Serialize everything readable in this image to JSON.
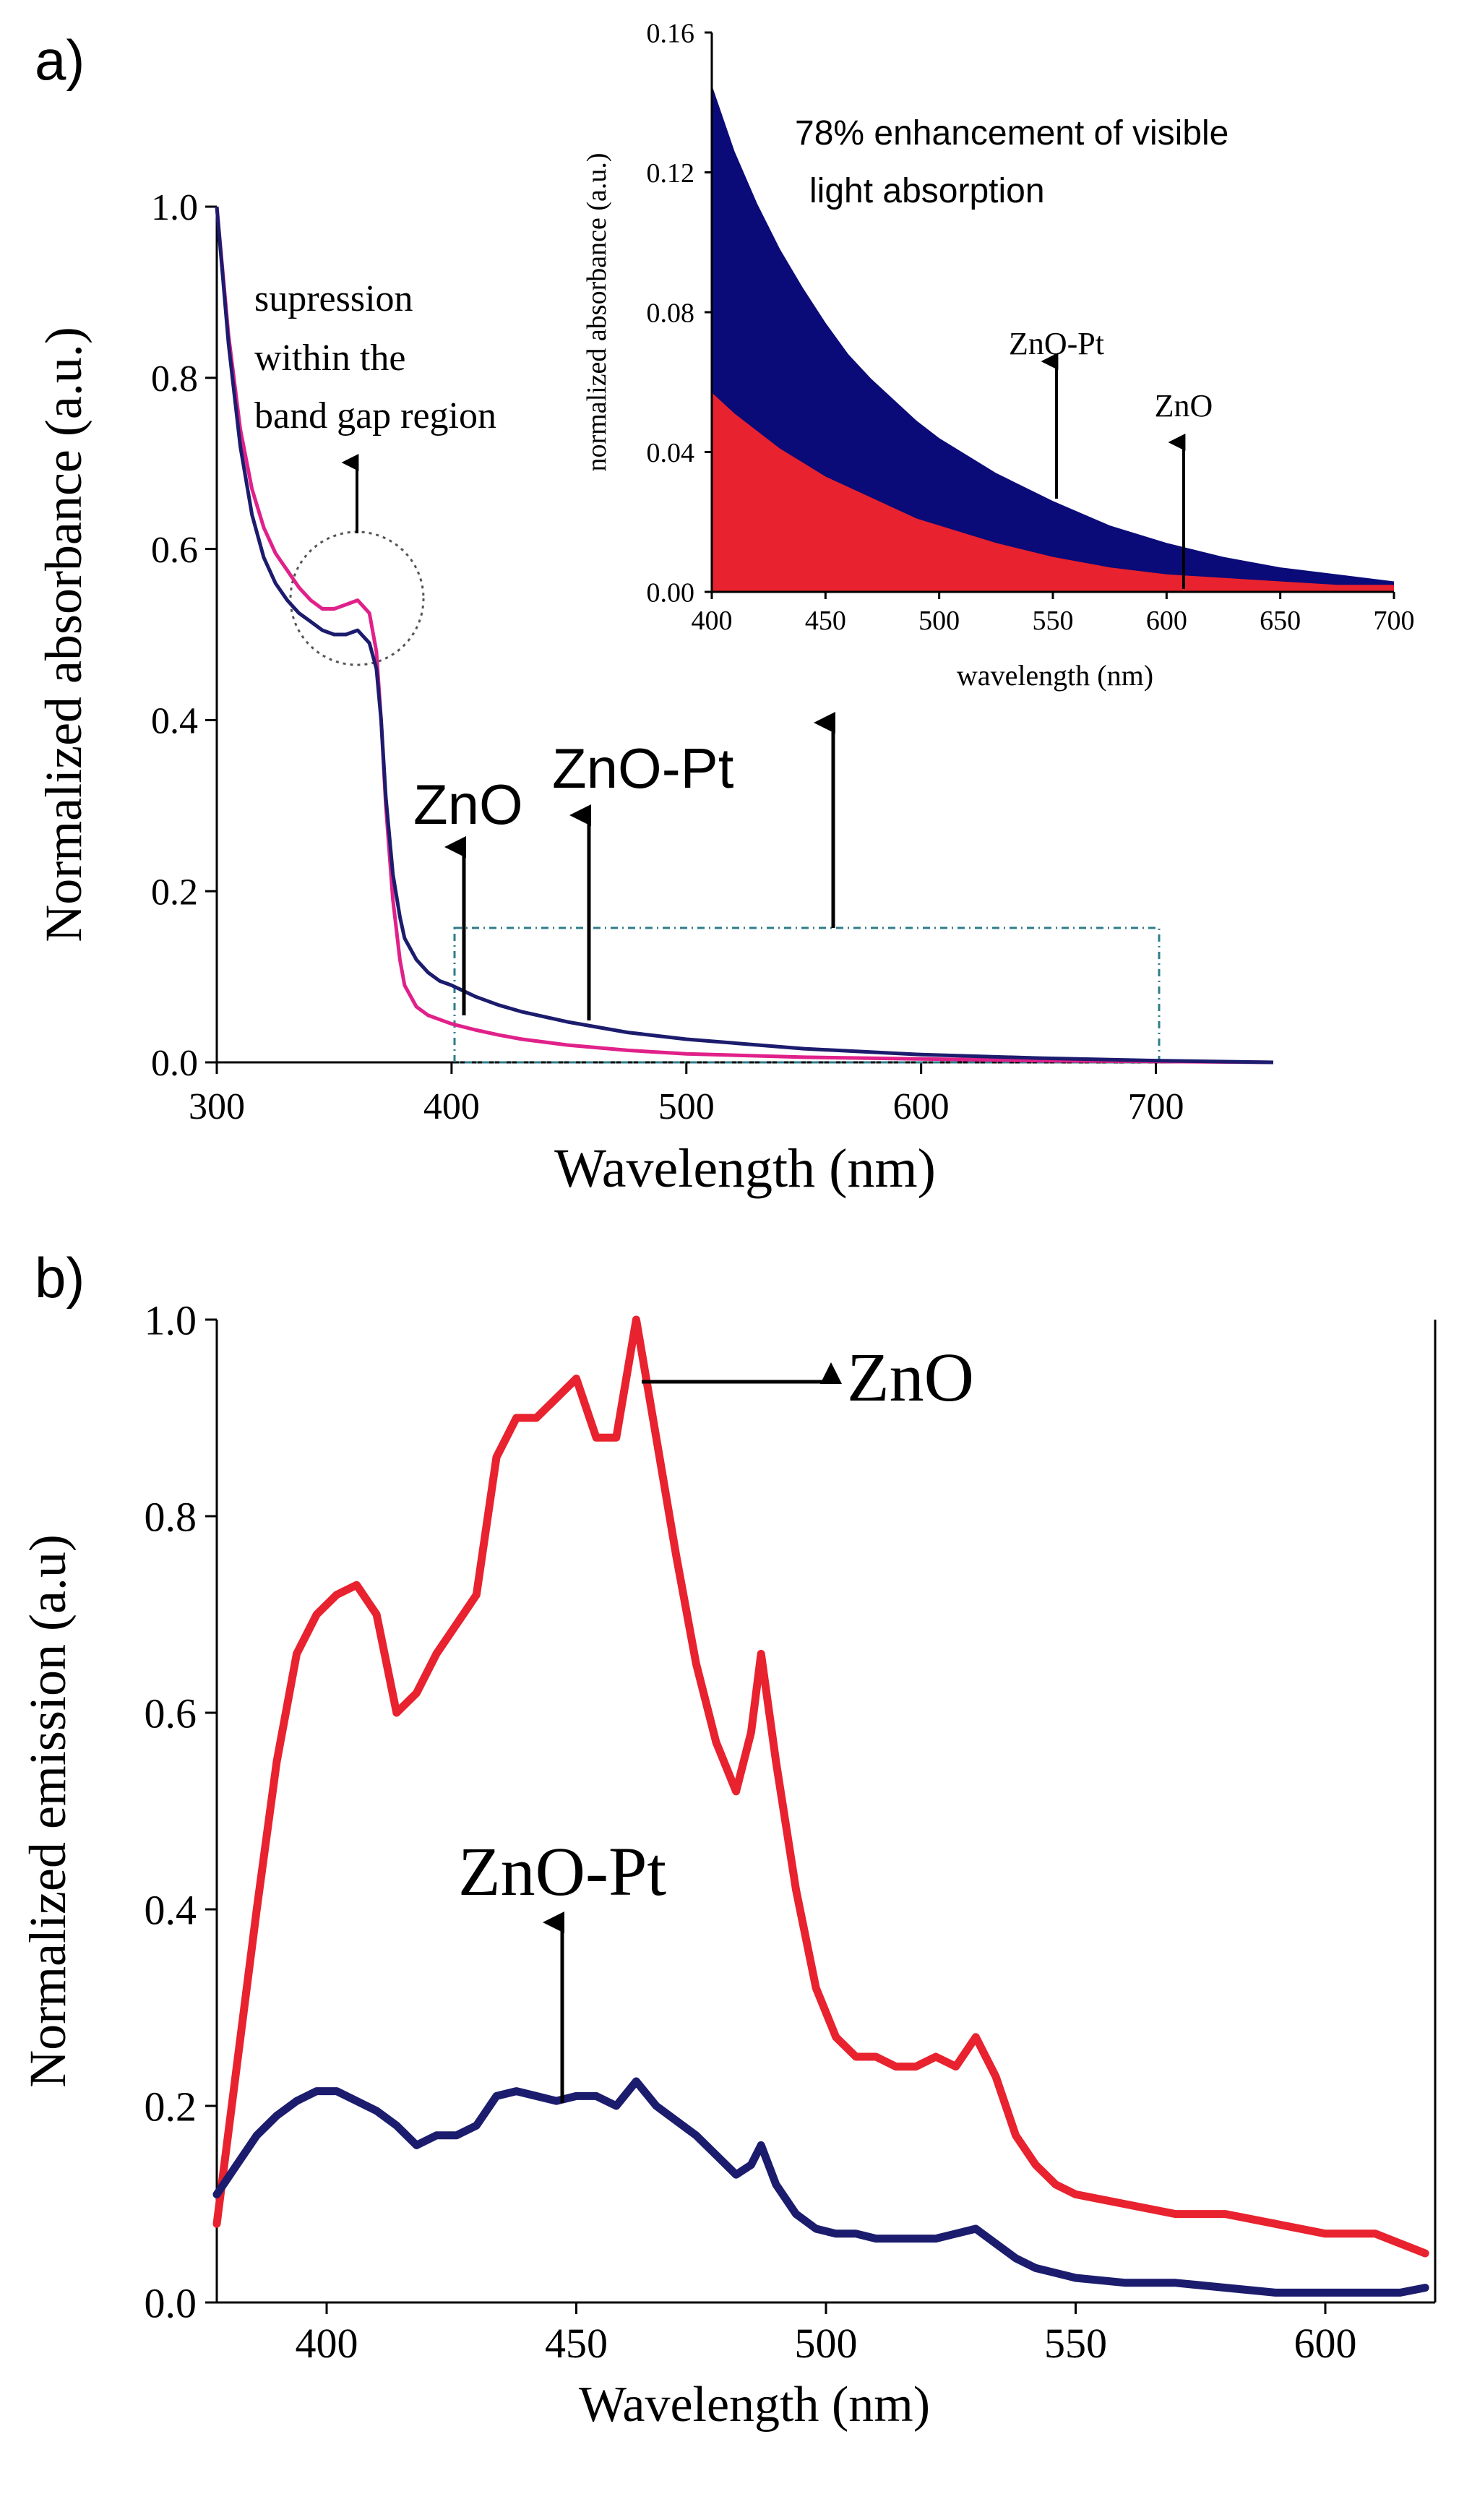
{
  "panels": {
    "a": {
      "label": "a)",
      "xlabel": "Wavelength (nm)",
      "ylabel": "Normalized absorbance (a.u.)",
      "xticks": [
        "300",
        "400",
        "500",
        "600",
        "700"
      ],
      "yticks": [
        "0.0",
        "0.2",
        "0.4",
        "0.6",
        "0.8",
        "1.0"
      ],
      "annotation_suppression": [
        "supression",
        "within the",
        "band gap region"
      ],
      "label_zno": "ZnO",
      "label_znopt": "ZnO-Pt"
    },
    "inset": {
      "title_lines": [
        "78% enhancement of visible",
        "light absorption"
      ],
      "xlabel": "wavelength (nm)",
      "ylabel": "normalized absorbance (a.u.)",
      "xticks": [
        "400",
        "450",
        "500",
        "550",
        "600",
        "650",
        "700"
      ],
      "yticks": [
        "0.00",
        "0.04",
        "0.08",
        "0.12",
        "0.16"
      ],
      "label_znopt": "ZnO-Pt",
      "label_zno": "ZnO"
    },
    "b": {
      "label": "b)",
      "xlabel": "Wavelength (nm)",
      "ylabel": "Normalized emission (a.u)",
      "xticks": [
        "400",
        "450",
        "500",
        "550",
        "600"
      ],
      "yticks": [
        "0.0",
        "0.2",
        "0.4",
        "0.6",
        "0.8",
        "1.0"
      ],
      "label_zno": "ZnO",
      "label_znopt": "ZnO-Pt"
    }
  },
  "colors": {
    "zno_abs": "#e0218a",
    "zno_pl": "#e8222e",
    "znopt": "#1c1c6e",
    "inset_red": "#e8222e",
    "inset_blue": "#0a0a78",
    "box": "#2e7d8a"
  },
  "chart_data": [
    {
      "type": "line",
      "panel": "a",
      "xlabel": "Wavelength (nm)",
      "ylabel": "Normalized absorbance (a.u.)",
      "xlim": [
        300,
        750
      ],
      "ylim": [
        0,
        1.0
      ],
      "series": [
        {
          "name": "ZnO",
          "color": "#e0218a",
          "x": [
            300,
            305,
            310,
            315,
            320,
            325,
            330,
            335,
            340,
            345,
            350,
            355,
            360,
            365,
            368,
            370,
            372,
            375,
            378,
            380,
            385,
            390,
            395,
            400,
            410,
            420,
            430,
            450,
            475,
            500,
            550,
            600,
            650,
            700,
            750
          ],
          "y": [
            1.0,
            0.85,
            0.74,
            0.67,
            0.625,
            0.595,
            0.575,
            0.555,
            0.54,
            0.53,
            0.53,
            0.535,
            0.54,
            0.525,
            0.48,
            0.4,
            0.3,
            0.19,
            0.12,
            0.09,
            0.065,
            0.055,
            0.05,
            0.045,
            0.038,
            0.032,
            0.027,
            0.02,
            0.014,
            0.01,
            0.006,
            0.004,
            0.002,
            0.001,
            0.0
          ]
        },
        {
          "name": "ZnO-Pt",
          "color": "#1c1c6e",
          "x": [
            300,
            305,
            310,
            315,
            320,
            325,
            330,
            335,
            340,
            345,
            350,
            355,
            360,
            365,
            368,
            370,
            372,
            375,
            378,
            380,
            385,
            390,
            395,
            400,
            410,
            420,
            430,
            450,
            475,
            500,
            550,
            600,
            650,
            700,
            750
          ],
          "y": [
            1.0,
            0.84,
            0.72,
            0.64,
            0.59,
            0.56,
            0.54,
            0.525,
            0.515,
            0.505,
            0.5,
            0.5,
            0.505,
            0.49,
            0.46,
            0.4,
            0.31,
            0.22,
            0.17,
            0.145,
            0.12,
            0.105,
            0.095,
            0.09,
            0.077,
            0.067,
            0.059,
            0.047,
            0.035,
            0.027,
            0.016,
            0.009,
            0.005,
            0.002,
            0.0
          ]
        }
      ]
    },
    {
      "type": "area",
      "panel": "inset",
      "title": "78% enhancement of visible light absorption",
      "xlabel": "wavelength (nm)",
      "ylabel": "normalized absorbance (a.u.)",
      "xlim": [
        400,
        700
      ],
      "ylim": [
        0,
        0.16
      ],
      "series": [
        {
          "name": "ZnO-Pt",
          "color": "#0a0a78",
          "x": [
            400,
            410,
            420,
            430,
            440,
            450,
            460,
            470,
            480,
            490,
            500,
            525,
            550,
            575,
            600,
            625,
            650,
            675,
            700
          ],
          "y": [
            0.145,
            0.126,
            0.111,
            0.098,
            0.087,
            0.077,
            0.068,
            0.061,
            0.055,
            0.049,
            0.044,
            0.034,
            0.026,
            0.019,
            0.014,
            0.01,
            0.007,
            0.005,
            0.003
          ]
        },
        {
          "name": "ZnO",
          "color": "#e8222e",
          "x": [
            400,
            410,
            420,
            430,
            440,
            450,
            460,
            470,
            480,
            490,
            500,
            525,
            550,
            575,
            600,
            625,
            650,
            675,
            700
          ],
          "y": [
            0.057,
            0.051,
            0.046,
            0.041,
            0.037,
            0.033,
            0.03,
            0.027,
            0.024,
            0.021,
            0.019,
            0.014,
            0.01,
            0.007,
            0.005,
            0.004,
            0.003,
            0.002,
            0.002
          ]
        }
      ]
    },
    {
      "type": "line",
      "panel": "b",
      "xlabel": "Wavelength (nm)",
      "ylabel": "Normalized emission (a.u)",
      "xlim": [
        378,
        622
      ],
      "ylim": [
        0,
        1.0
      ],
      "series": [
        {
          "name": "ZnO",
          "color": "#e8222e",
          "x": [
            378,
            382,
            386,
            390,
            394,
            398,
            402,
            406,
            410,
            414,
            418,
            422,
            426,
            430,
            434,
            438,
            442,
            446,
            450,
            454,
            458,
            462,
            466,
            470,
            474,
            478,
            482,
            485,
            487,
            490,
            494,
            498,
            502,
            506,
            510,
            514,
            518,
            522,
            526,
            530,
            534,
            538,
            542,
            546,
            550,
            560,
            570,
            580,
            590,
            600,
            610,
            615,
            620
          ],
          "y": [
            0.08,
            0.24,
            0.4,
            0.55,
            0.66,
            0.7,
            0.72,
            0.73,
            0.7,
            0.6,
            0.62,
            0.66,
            0.69,
            0.72,
            0.86,
            0.9,
            0.9,
            0.92,
            0.94,
            0.88,
            0.88,
            1.0,
            0.88,
            0.76,
            0.65,
            0.57,
            0.52,
            0.58,
            0.66,
            0.55,
            0.42,
            0.32,
            0.27,
            0.25,
            0.25,
            0.24,
            0.24,
            0.25,
            0.24,
            0.27,
            0.23,
            0.17,
            0.14,
            0.12,
            0.11,
            0.1,
            0.09,
            0.09,
            0.08,
            0.07,
            0.07,
            0.06,
            0.05
          ]
        },
        {
          "name": "ZnO-Pt",
          "color": "#1c1c6e",
          "x": [
            378,
            382,
            386,
            390,
            394,
            398,
            402,
            406,
            410,
            414,
            418,
            422,
            426,
            430,
            434,
            438,
            442,
            446,
            450,
            454,
            458,
            462,
            466,
            470,
            474,
            478,
            482,
            485,
            487,
            490,
            494,
            498,
            502,
            506,
            510,
            514,
            518,
            522,
            526,
            530,
            534,
            538,
            542,
            546,
            550,
            560,
            570,
            580,
            590,
            600,
            610,
            615,
            620
          ],
          "y": [
            0.11,
            0.14,
            0.17,
            0.19,
            0.205,
            0.215,
            0.215,
            0.205,
            0.195,
            0.18,
            0.16,
            0.17,
            0.17,
            0.18,
            0.21,
            0.215,
            0.21,
            0.205,
            0.21,
            0.21,
            0.2,
            0.225,
            0.2,
            0.185,
            0.17,
            0.15,
            0.13,
            0.14,
            0.16,
            0.12,
            0.09,
            0.075,
            0.07,
            0.07,
            0.065,
            0.065,
            0.065,
            0.065,
            0.07,
            0.075,
            0.06,
            0.045,
            0.035,
            0.03,
            0.025,
            0.02,
            0.02,
            0.015,
            0.01,
            0.01,
            0.01,
            0.01,
            0.015
          ]
        }
      ]
    }
  ]
}
